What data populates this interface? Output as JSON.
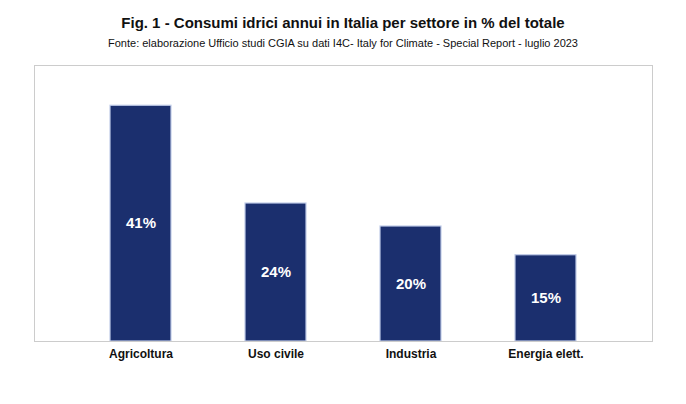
{
  "chart_data": {
    "type": "bar",
    "title": "Fig. 1 - Consumi idrici annui in Italia per settore in % del totale",
    "subtitle": "Fonte: elaborazione Ufficio studi CGIA su dati I4C- Italy for Climate - Special Report - luglio 2023",
    "categories": [
      "Agricoltura",
      "Uso civile",
      "Industria",
      "Energia elett."
    ],
    "values": [
      41,
      24,
      20,
      15
    ],
    "value_labels": [
      "41%",
      "24%",
      "20%",
      "15%"
    ],
    "data_labels": true,
    "color": "#1b2f6e",
    "ylim": [
      0,
      48
    ],
    "grid": false,
    "tick_labels": "x"
  }
}
